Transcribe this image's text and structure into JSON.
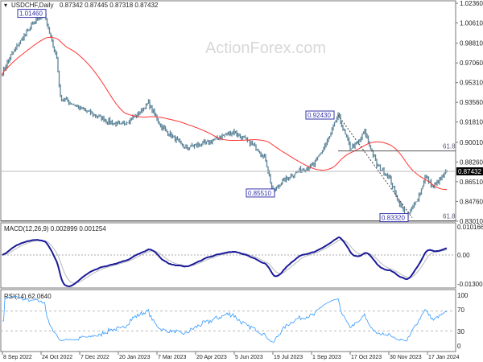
{
  "header": {
    "symbol": "USDCHF,Daily",
    "ohlc": "0.87342 0.87445 0.87318 0.87432"
  },
  "watermark": "ActionForex.com",
  "chart_data": {
    "type": "line",
    "title": "USDCHF,Daily",
    "price_ticks": [
      "1.02360",
      "1.00610",
      "0.98810",
      "0.97060",
      "0.95310",
      "0.93560",
      "0.91810",
      "0.90010",
      "0.88260",
      "0.86510",
      "0.84760",
      "0.83010"
    ],
    "price_tick_values": [
      1.0236,
      1.0061,
      0.9881,
      0.9706,
      0.9531,
      0.9356,
      0.9181,
      0.9001,
      0.8826,
      0.8651,
      0.8476,
      0.8301
    ],
    "ylim": [
      0.8301,
      1.0236
    ],
    "current_price": "0.87432",
    "current_price_value": 0.87432,
    "x_ticks": [
      "8 Sep 2022",
      "24 Oct 2022",
      "7 Dec 2022",
      "20 Jan 2023",
      "7 Mar 2023",
      "20 Apr 2023",
      "5 Jun 2023",
      "19 Jul 2023",
      "1 Sep 2023",
      "17 Oct 2023",
      "30 Nov 2023",
      "17 Jan 2024"
    ],
    "bars_between_ticks": 32,
    "close_path": {
      "bar": [
        0,
        6,
        15,
        25,
        35,
        38,
        45,
        48,
        65,
        85,
        98,
        112,
        121,
        131,
        151,
        171,
        191,
        211,
        218,
        224,
        231,
        245,
        258,
        271,
        278,
        288,
        295,
        300,
        310,
        320,
        327,
        335,
        346,
        350,
        357,
        363,
        368
      ],
      "price": [
        0.962,
        0.975,
        0.99,
        1.005,
        1.0146,
        1.0,
        0.975,
        0.94,
        0.93,
        0.92,
        0.915,
        0.925,
        0.935,
        0.915,
        0.895,
        0.9,
        0.91,
        0.895,
        0.885,
        0.8551,
        0.865,
        0.875,
        0.88,
        0.905,
        0.9243,
        0.895,
        0.9,
        0.91,
        0.88,
        0.87,
        0.85,
        0.8332,
        0.855,
        0.87,
        0.86,
        0.868,
        0.8743
      ]
    },
    "annotations": [
      {
        "label": "1.01460",
        "value": 1.0146
      },
      {
        "label": "0.92430",
        "value": 0.9243
      },
      {
        "label": "0.85510",
        "value": 0.8551
      },
      {
        "label": "0.83320",
        "value": 0.8332
      }
    ],
    "fib_levels": [
      {
        "label": "61.8",
        "value": 0.8924
      },
      {
        "label": "61.8",
        "value": 0.8304
      }
    ],
    "ma_color": "#ff3333",
    "candle_color": "#5a8296",
    "macd": {
      "label": "MACD(12,26,9) 0.002899 0.001254",
      "ticks": [
        "0.010166",
        "0.00",
        "-0.013006"
      ],
      "ylim": [
        -0.013006,
        0.010166
      ],
      "color": "#1a1a99"
    },
    "rsi": {
      "label": "RSI(14) 62.0640",
      "ticks": [
        "100",
        "70",
        "30",
        "0"
      ],
      "ylim": [
        0,
        100
      ],
      "levels": [
        70,
        30
      ],
      "color": "#3399ff"
    }
  }
}
